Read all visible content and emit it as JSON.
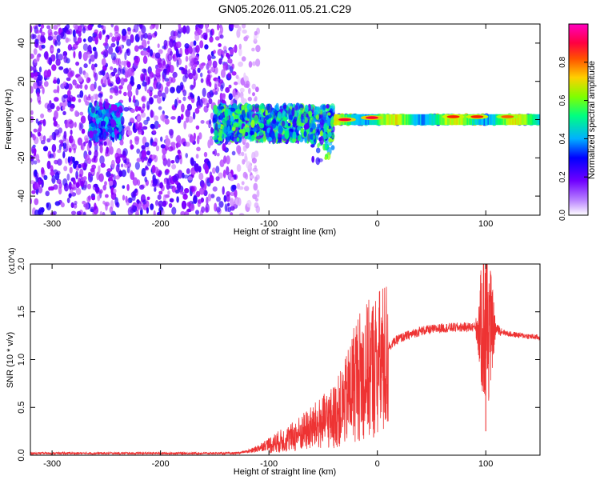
{
  "figure": {
    "title": "GN05.2026.011.05.21.C29"
  },
  "chart_data": [
    {
      "type": "heatmap",
      "xlabel": "Height of straight line (km)",
      "ylabel": "Frequency (Hz)",
      "xlim": [
        -320,
        150
      ],
      "ylim": [
        -50,
        50
      ],
      "xticks": [
        -300,
        -200,
        -100,
        0,
        100
      ],
      "yticks": [
        -40,
        -20,
        0,
        20,
        40
      ],
      "colorbar": {
        "label": "Normalized spectral amplitude",
        "range": [
          0,
          1
        ],
        "ticks": [
          0.0,
          0.2,
          0.4,
          0.6,
          0.8
        ],
        "tick_labels": [
          "0.0",
          "0.2",
          "0.4",
          "0.6",
          "0.8"
        ],
        "colormap": [
          "#ffffff",
          "#9600ff",
          "#0000ff",
          "#00c8ff",
          "#00ff64",
          "#c8ff00",
          "#ff9600",
          "#ff0000",
          "#ff00ff"
        ]
      },
      "regions": [
        {
          "x_range": [
            -320,
            -130
          ],
          "freq_range": [
            -50,
            50
          ],
          "amplitude": 0.15
        },
        {
          "x_range": [
            -130,
            -110
          ],
          "freq_range": [
            -50,
            50
          ],
          "amplitude": 0.05
        },
        {
          "x_range": [
            -265,
            -235
          ],
          "freq_range": [
            -10,
            8
          ],
          "amplitude": 0.3
        },
        {
          "x_range": [
            -150,
            -40
          ],
          "freq_range": [
            -12,
            8
          ],
          "amplitude": 0.4
        },
        {
          "x_range": [
            -40,
            150
          ],
          "freq_range": [
            -3,
            3
          ],
          "amplitude": 0.5
        }
      ],
      "peaks": [
        {
          "x": -30,
          "freq": 0,
          "amplitude": 0.9
        },
        {
          "x": -5,
          "freq": 1,
          "amplitude": 0.9
        },
        {
          "x": 70,
          "freq": 1.5,
          "amplitude": 0.85
        },
        {
          "x": 92,
          "freq": 1.5,
          "amplitude": 0.85
        },
        {
          "x": 120,
          "freq": 1.5,
          "amplitude": 0.8
        }
      ]
    },
    {
      "type": "line",
      "xlabel": "Height of straight line (km)",
      "ylabel": "SNR (10 * v/v)",
      "ylabel_scale": "(x10^4)",
      "xlim": [
        -320,
        150
      ],
      "ylim": [
        0,
        2.0
      ],
      "xticks": [
        -300,
        -200,
        -100,
        0,
        100
      ],
      "yticks": [
        0.0,
        0.5,
        1.0,
        1.5,
        2.0
      ],
      "ytick_labels": [
        "0.0",
        "0.5",
        "1.0",
        "1.5",
        "2.0"
      ],
      "color": "#ee3333",
      "envelope": {
        "x": [
          -320,
          -200,
          -130,
          -115,
          -100,
          -80,
          -60,
          -40,
          -30,
          -20,
          0,
          20,
          40,
          60,
          80,
          95,
          100,
          110,
          120,
          150
        ],
        "y": [
          0.02,
          0.02,
          0.02,
          0.05,
          0.12,
          0.2,
          0.32,
          0.45,
          0.6,
          0.9,
          1.05,
          1.22,
          1.3,
          1.33,
          1.34,
          1.34,
          1.35,
          1.32,
          1.27,
          1.23
        ]
      },
      "annotations": [
        {
          "x": 100,
          "y_min": 0.25,
          "y_max": 2.0
        }
      ]
    }
  ]
}
